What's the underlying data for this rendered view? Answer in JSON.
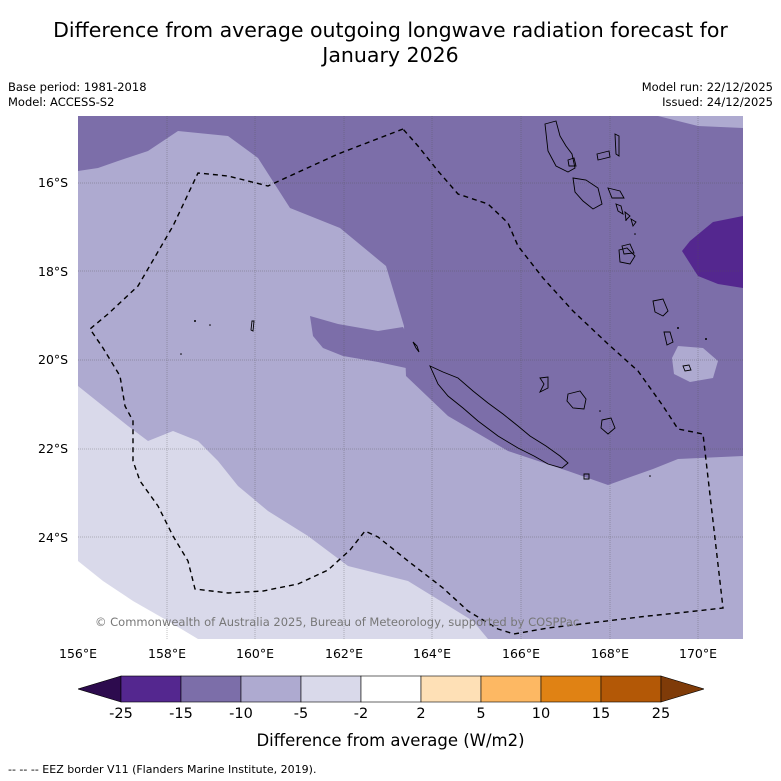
{
  "title": {
    "line1": "Difference from average outgoing longwave radiation forecast for",
    "line2": "January 2026"
  },
  "meta": {
    "base_period": "Base period: 1981-2018",
    "model": "Model: ACCESS-S2",
    "model_run": "Model run: 22/12/2025",
    "issued": "Issued: 24/12/2025"
  },
  "map": {
    "latitude_labels": [
      "16°S",
      "18°S",
      "20°S",
      "22°S",
      "24°S"
    ],
    "longitude_labels": [
      "156°E",
      "158°E",
      "160°E",
      "162°E",
      "164°E",
      "166°E",
      "168°E",
      "170°E"
    ],
    "copyright": "© Commonwealth of Australia 2025, Bureau of Meteorology, supported by COSPPac",
    "eez_legend": "--  --  -- EEZ border V11 (Flanders Marine Institute, 2019)."
  },
  "colorbar": {
    "title": "Difference from average (W/m2)",
    "tick_labels": [
      "-25",
      "-15",
      "-10",
      "-5",
      "-2",
      "2",
      "5",
      "10",
      "15",
      "25"
    ],
    "colors": {
      "below_-25": "#2d0b4e",
      "-25_-15": "#54278f",
      "-15_-10": "#7c6ea9",
      "-10_-5": "#aeaad0",
      "-5_-2": "#d9d9ea",
      "-2_2": "#ffffff",
      "2_5": "#fee0b6",
      "5_10": "#fdb863",
      "10_15": "#e08214",
      "15_25": "#b35806",
      "above_25": "#7f3b08"
    }
  }
}
